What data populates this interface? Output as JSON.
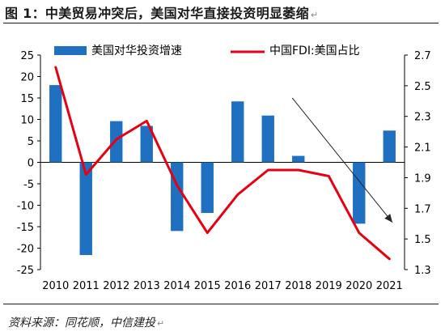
{
  "title": "图 1：中美贸易冲突后，美国对华直接投资明显萎缩",
  "source_note": "资料来源：同花顺，中信建投",
  "colors": {
    "bar": "#1f70c1",
    "line": "#e60012",
    "arrow": "#262626",
    "text": "#000000"
  },
  "chart_data": {
    "type": "bar+line",
    "categories": [
      "2010",
      "2011",
      "2012",
      "2013",
      "2014",
      "2015",
      "2016",
      "2017",
      "2018",
      "2019",
      "2020",
      "2021"
    ],
    "series": [
      {
        "name": "美国对华投资增速",
        "type": "bar",
        "axis": "left",
        "values": [
          18.0,
          -21.6,
          9.6,
          8.5,
          -16.0,
          -11.8,
          14.2,
          10.9,
          1.5,
          0,
          -14.3,
          7.4
        ]
      },
      {
        "name": "中国FDI:美国占比",
        "type": "line",
        "axis": "right",
        "values": [
          2.62,
          1.92,
          2.15,
          2.27,
          1.85,
          1.54,
          1.79,
          1.95,
          1.95,
          1.91,
          1.54,
          1.37
        ]
      }
    ],
    "y_left": {
      "min": -25,
      "max": 25,
      "ticks": [
        25,
        20,
        15,
        10,
        5,
        0,
        -5,
        -10,
        -15,
        -20,
        -25
      ]
    },
    "y_right": {
      "min": 1.3,
      "max": 2.7,
      "ticks": [
        "2.7",
        "2.5",
        "2.3",
        "2.1",
        "1.9",
        "1.7",
        "1.5",
        "1.3"
      ]
    },
    "legend": {
      "position": "top"
    },
    "annotation": {
      "type": "arrow",
      "from_x": 2017.8,
      "from_y_left": 15,
      "to_x": 2021.1,
      "to_y_left": -14
    },
    "grid": false
  }
}
